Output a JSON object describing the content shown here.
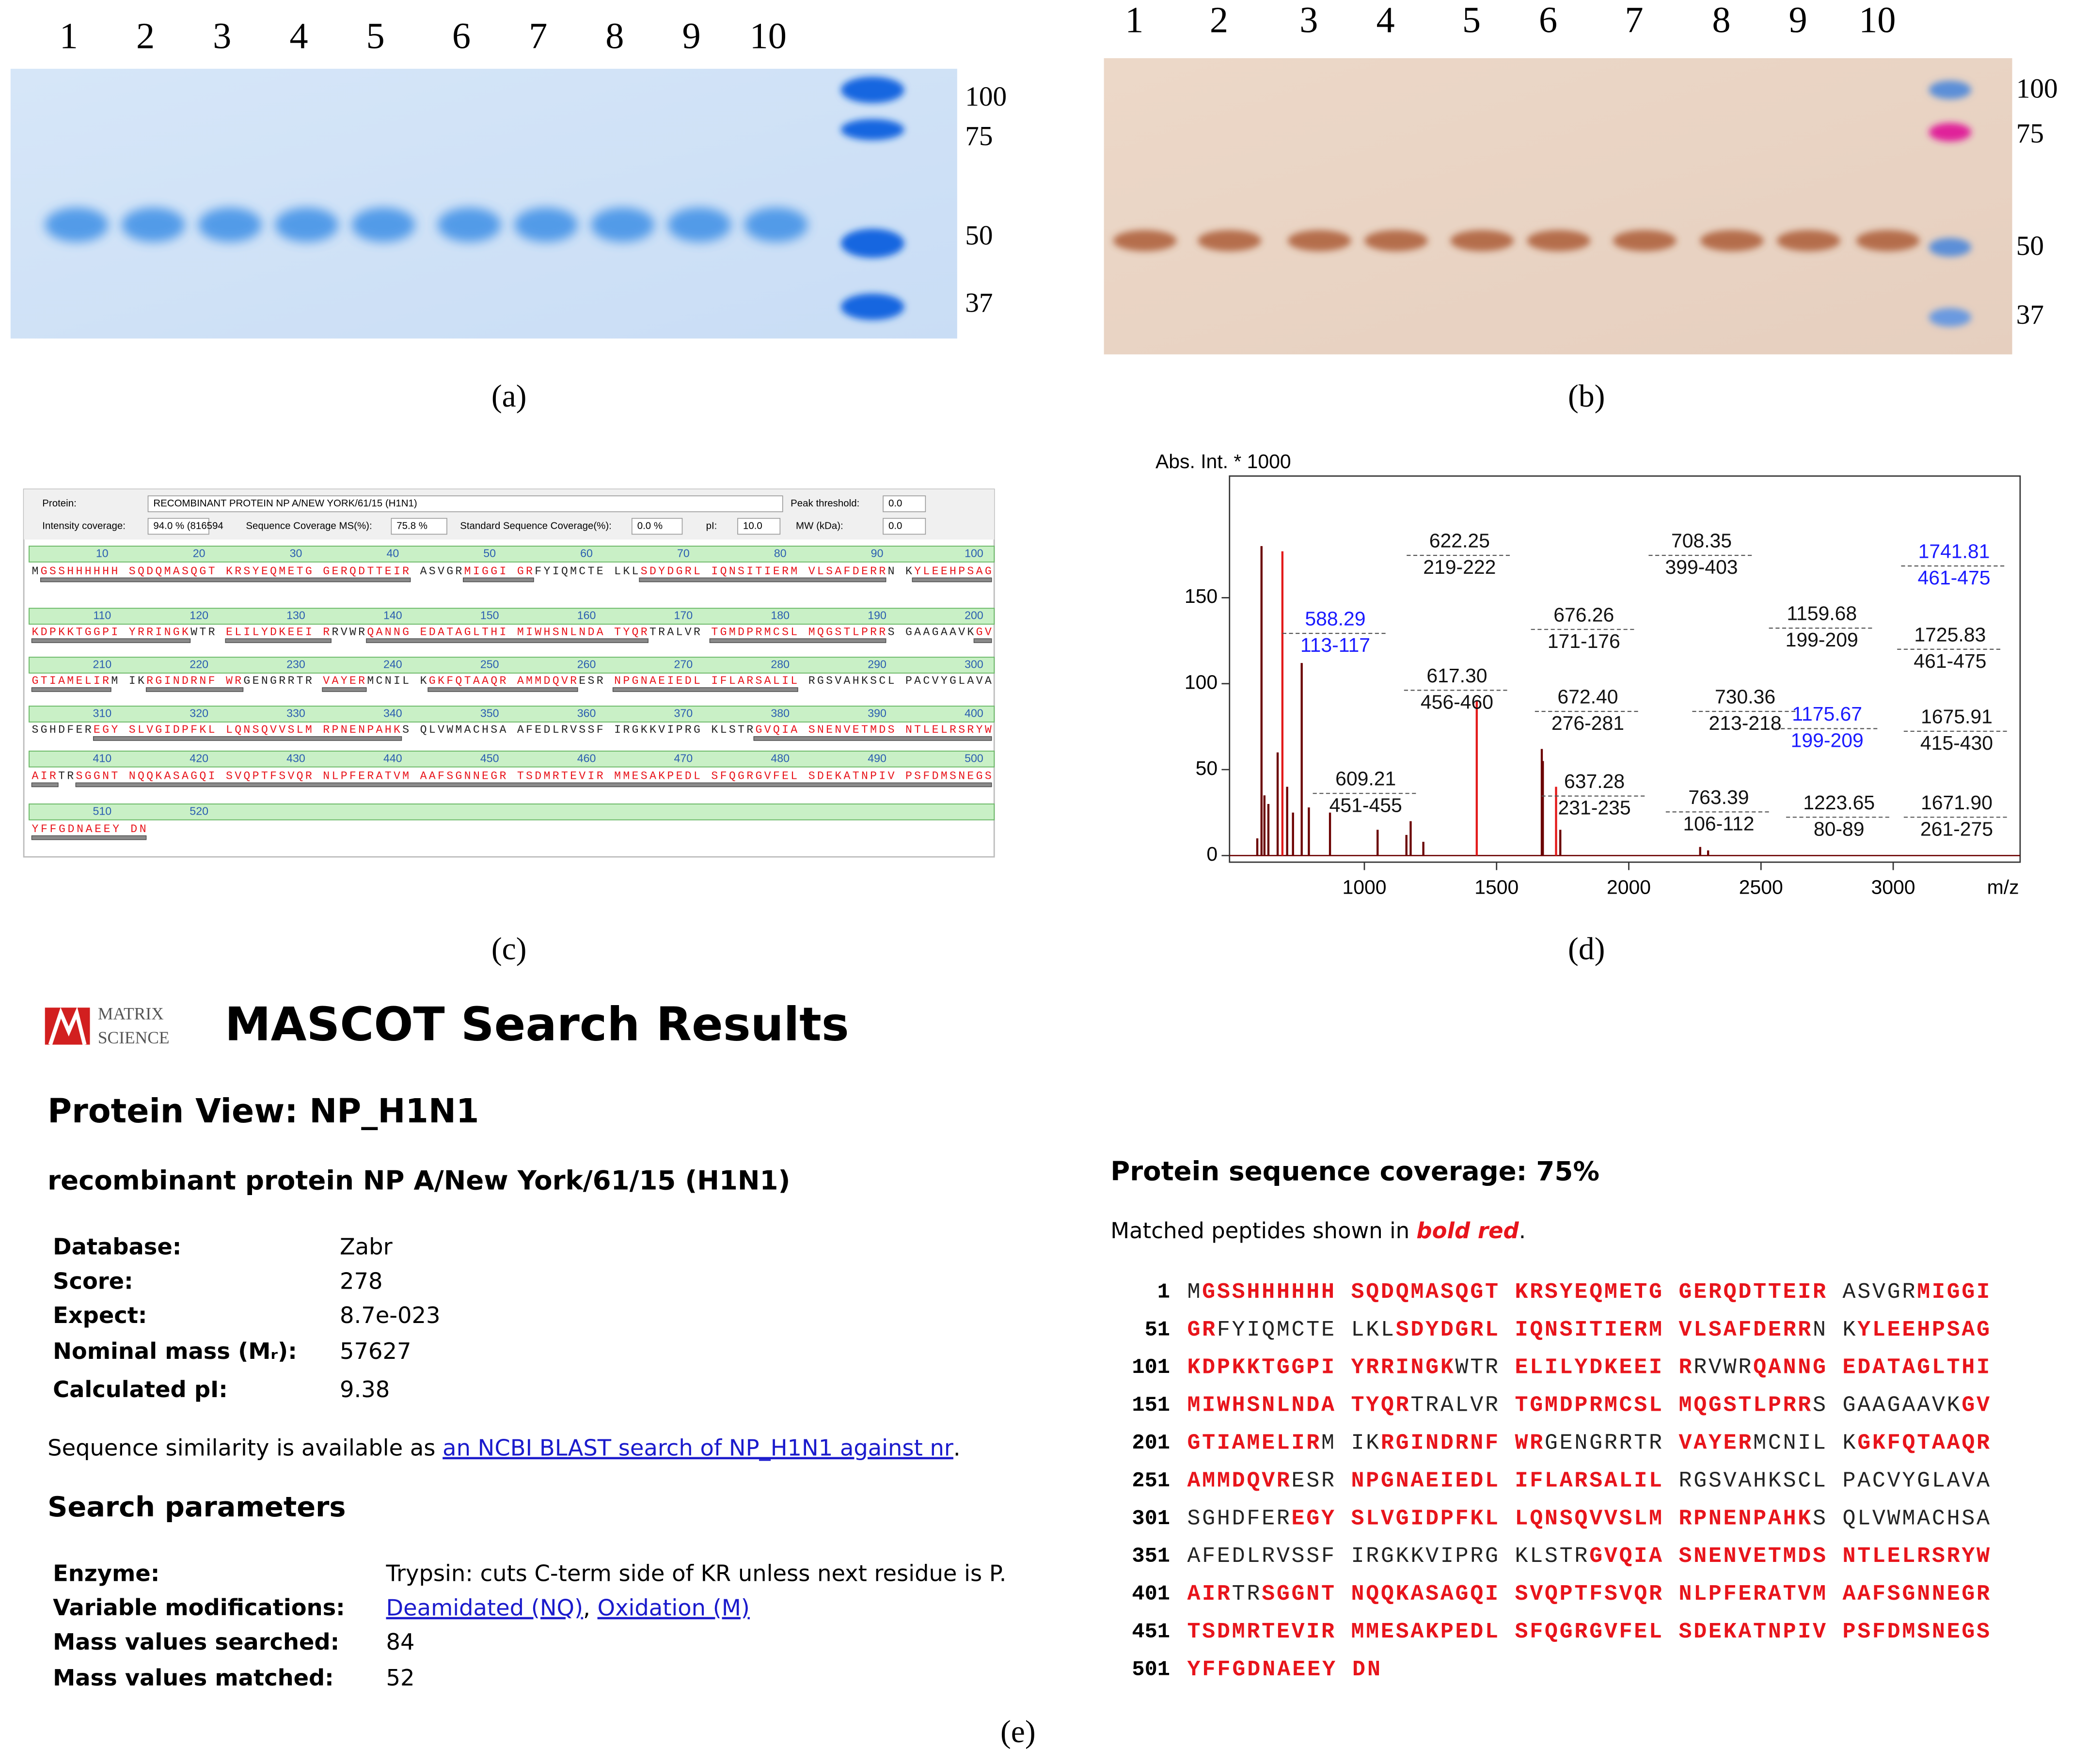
{
  "captions": [
    "(a)",
    "(b)",
    "(c)",
    "(d)",
    "(e)"
  ],
  "gel_a": {
    "lanes": [
      1,
      2,
      3,
      4,
      5,
      6,
      7,
      8,
      9,
      10
    ],
    "markers": [
      100,
      75,
      50,
      37
    ]
  },
  "gel_b": {
    "lanes": [
      1,
      2,
      3,
      4,
      5,
      6,
      7,
      8,
      9,
      10
    ],
    "markers": [
      100,
      75,
      50,
      37
    ]
  },
  "panel_c": {
    "fields": [
      {
        "label": "Protein:",
        "value": "RECOMBINANT PROTEIN NP A/NEW YORK/61/15 (H1N1)"
      },
      {
        "label": "Peak threshold:",
        "value": "0.0"
      },
      {
        "label": "Intensity coverage:",
        "value": "94.0 % (816594"
      },
      {
        "label": "Sequence Coverage MS(%):",
        "value": "75.8 %"
      },
      {
        "label": "Standard Sequence Coverage(%):",
        "value": "0.0 %"
      },
      {
        "label": "pI:",
        "value": "10.0"
      },
      {
        "label": "MW (kDa):",
        "value": "0.0"
      }
    ],
    "ruler": [
      [
        10,
        20,
        30,
        40,
        50,
        60,
        70,
        80,
        90,
        100
      ],
      [
        110,
        120,
        130,
        140,
        150,
        160,
        170,
        180,
        190,
        200
      ],
      [
        210,
        220,
        230,
        240,
        250,
        260,
        270,
        280,
        290,
        300
      ],
      [
        310,
        320,
        330,
        340,
        350,
        360,
        370,
        380,
        390,
        400
      ],
      [
        410,
        420,
        430,
        440,
        450,
        460,
        470,
        480,
        490,
        500
      ],
      [
        510,
        520
      ]
    ],
    "rows": [
      [
        {
          "text": "M",
          "matched": false
        },
        {
          "text": "GSSHHHHHH SQDQMASQGT KRSYEQMETG GERQDTTEIR",
          "matched": true
        },
        {
          "text": " ASVGR",
          "matched": false
        },
        {
          "text": "MIGGI GR",
          "matched": true
        },
        {
          "text": "FYIQMCTE LKL",
          "matched": false
        },
        {
          "text": "SDYDGRL IQNSITIERM VLSAFDERR",
          "matched": true
        },
        {
          "text": "N K",
          "matched": false
        },
        {
          "text": "YLEEHPSAG",
          "matched": true
        }
      ],
      [
        {
          "text": "KDPKKTGGPI YRRINGK",
          "matched": true
        },
        {
          "text": "WTR ",
          "matched": false
        },
        {
          "text": "ELILYDKEEI R",
          "matched": true
        },
        {
          "text": "RVWR",
          "matched": false
        },
        {
          "text": "QANNG EDATAGLTHI MIWHSNLNDA TYQR",
          "matched": true
        },
        {
          "text": "TRALVR ",
          "matched": false
        },
        {
          "text": "TGMDPRMCSL MQGSTLPRR",
          "matched": true
        },
        {
          "text": "S GAAGAAVK",
          "matched": false
        },
        {
          "text": "GV",
          "matched": true
        }
      ],
      [
        {
          "text": "GTIAMELIR",
          "matched": true
        },
        {
          "text": "M IK",
          "matched": false
        },
        {
          "text": "RGINDRNF WR",
          "matched": true
        },
        {
          "text": "GENGRRTR ",
          "matched": false
        },
        {
          "text": "VAYER",
          "matched": true
        },
        {
          "text": "MCNIL K",
          "matched": false
        },
        {
          "text": "GKFQTAAQR AMMDQVR",
          "matched": true
        },
        {
          "text": "ESR ",
          "matched": false
        },
        {
          "text": "NPGNAEIEDL IFLARSALIL",
          "matched": true
        },
        {
          "text": " RGSVAHKSCL PACVYGLAVA",
          "matched": false
        }
      ],
      [
        {
          "text": "SGHDFER",
          "matched": false
        },
        {
          "text": "EGY SLVGIDPFKL LQNSQVVSLM RPNENPAHK",
          "matched": true
        },
        {
          "text": "S QLVWMACHSA AFEDLRVSSF IRGKKVIPRG KLSTR",
          "matched": false
        },
        {
          "text": "GVQIA SNENVETMDS NTLELRSRYW",
          "matched": true
        }
      ],
      [
        {
          "text": "AIR",
          "matched": true
        },
        {
          "text": "TR",
          "matched": false
        },
        {
          "text": "SGGNT NQQKASAGQI SVQPTFSVQR NLPFERATVM AAFSGNNEGR TSDMRTEVIR MMESAKPEDL SFQGRGVFEL SDEKATNPIV PSFDMSNEGS",
          "matched": true
        }
      ],
      [
        {
          "text": "YFFGDNAEEY DN",
          "matched": true
        }
      ]
    ]
  },
  "chart_data": {
    "type": "stem",
    "y_label": "Abs. Int. * 1000",
    "x_label": "m/z",
    "xlim": [
      500,
      3500
    ],
    "ylim": [
      0,
      220
    ],
    "xticks": [
      1000,
      1500,
      2000,
      2500,
      3000
    ],
    "yticks": [
      0,
      50,
      100,
      150
    ],
    "x": [
      595,
      611,
      622,
      637,
      672,
      690,
      708,
      730,
      763,
      790,
      870,
      1050,
      1159,
      1175,
      1223,
      1425,
      1671,
      1675,
      1725,
      1741,
      2270,
      2300
    ],
    "values": [
      10,
      180,
      35,
      30,
      60,
      177,
      40,
      25,
      112,
      28,
      25,
      15,
      12,
      20,
      8,
      90,
      62,
      55,
      40,
      15,
      5,
      3
    ],
    "colors": [
      "#6b0000",
      "#6b0000",
      "#6b0000",
      "#6b0000",
      "#6b0000",
      "#e31a1a",
      "#6b0000",
      "#6b0000",
      "#6b0000",
      "#6b0000",
      "#6b0000",
      "#6b0000",
      "#6b0000",
      "#6b0000",
      "#6b0000",
      "#e31a1a",
      "#6b0000",
      "#6b0000",
      "#e31a1a",
      "#6b0000",
      "#6b0000",
      "#6b0000"
    ],
    "annotations": [
      {
        "mass": "622.25",
        "range": "219-222",
        "color": "#111111"
      },
      {
        "mass": "708.35",
        "range": "399-403",
        "color": "#111111"
      },
      {
        "mass": "1741.81",
        "range": "461-475",
        "color": "#1a1aff"
      },
      {
        "mass": "588.29",
        "range": "113-117",
        "color": "#1a1aff"
      },
      {
        "mass": "676.26",
        "range": "171-176",
        "color": "#111111"
      },
      {
        "mass": "1159.68",
        "range": "199-209",
        "color": "#111111"
      },
      {
        "mass": "1725.83",
        "range": "461-475",
        "color": "#111111"
      },
      {
        "mass": "617.30",
        "range": "456-460",
        "color": "#111111"
      },
      {
        "mass": "672.40",
        "range": "276-281",
        "color": "#111111"
      },
      {
        "mass": "730.36",
        "range": "213-218",
        "color": "#111111"
      },
      {
        "mass": "1175.67",
        "range": "199-209",
        "color": "#1a1aff"
      },
      {
        "mass": "1675.91",
        "range": "415-430",
        "color": "#111111"
      },
      {
        "mass": "609.21",
        "range": "451-455",
        "color": "#111111"
      },
      {
        "mass": "637.28",
        "range": "231-235",
        "color": "#111111"
      },
      {
        "mass": "763.39",
        "range": "106-112",
        "color": "#111111"
      },
      {
        "mass": "1223.65",
        "range": "80-89",
        "color": "#111111"
      },
      {
        "mass": "1671.90",
        "range": "261-275",
        "color": "#111111"
      }
    ]
  },
  "mascot": {
    "logo": [
      "MATRIX",
      "SCIENCE"
    ],
    "title": "MASCOT Search Results",
    "protein_view": "Protein View: NP_H1N1",
    "description": "recombinant protein NP A/New York/61/15 (H1N1)",
    "fields": [
      {
        "label": "Database:",
        "value": "Zabr"
      },
      {
        "label": "Score:",
        "value": 278
      },
      {
        "label": "Expect:",
        "value": "8.7e-023"
      },
      {
        "label": "Nominal mass (Mᵣ):",
        "value": 57627
      },
      {
        "label": "Calculated pI:",
        "value": 9.38
      }
    ],
    "similarity": {
      "text": "Sequence similarity is available as ",
      "link": "an NCBI BLAST search of NP_H1N1 against nr",
      "end": "."
    },
    "search_parameters": "Search parameters",
    "params": [
      {
        "label": "Enzyme:",
        "value": "Trypsin: cuts C-term side of KR unless next residue is P."
      },
      {
        "label": "Variable modifications:",
        "links": [
          "Deamidated (NQ)",
          "Oxidation (M)"
        ],
        "separator": ", "
      },
      {
        "label": "Mass values searched:",
        "value": 84
      },
      {
        "label": "Mass values matched:",
        "value": 52
      }
    ],
    "coverage": "Protein sequence coverage: 75%",
    "note": {
      "text": "Matched peptides shown in ",
      "emph": "bold red",
      "end": "."
    },
    "lines": [
      {
        "start": 1,
        "segments": [
          {
            "text": "M",
            "matched": false
          },
          {
            "text": "GSSHHHHHH SQDQMASQGT KRSYEQMETG GERQDTTEIR",
            "matched": true
          },
          {
            "text": " ASVGR",
            "matched": false
          },
          {
            "text": "MIGGI",
            "matched": true
          }
        ]
      },
      {
        "start": 51,
        "segments": [
          {
            "text": "GR",
            "matched": true
          },
          {
            "text": "FYIQMCTE LKL",
            "matched": false
          },
          {
            "text": "SDYDGRL IQNSITIERM VLSAFDERR",
            "matched": true
          },
          {
            "text": "N K",
            "matched": false
          },
          {
            "text": "YLEEHPSAG",
            "matched": true
          }
        ]
      },
      {
        "start": 101,
        "segments": [
          {
            "text": "KDPKKTGGPI YRRINGK",
            "matched": true
          },
          {
            "text": "WTR ",
            "matched": false
          },
          {
            "text": "ELILYDKEEI R",
            "matched": true
          },
          {
            "text": "RVWR",
            "matched": false
          },
          {
            "text": "QANNG EDATAGLTHI",
            "matched": true
          }
        ]
      },
      {
        "start": 151,
        "segments": [
          {
            "text": "MIWHSNLNDA TYQR",
            "matched": true
          },
          {
            "text": "TRALVR ",
            "matched": false
          },
          {
            "text": "TGMDPRMCSL MQGSTLPRR",
            "matched": true
          },
          {
            "text": "S GAAGAAVK",
            "matched": false
          },
          {
            "text": "GV",
            "matched": true
          }
        ]
      },
      {
        "start": 201,
        "segments": [
          {
            "text": "GTIAMELIR",
            "matched": true
          },
          {
            "text": "M IK",
            "matched": false
          },
          {
            "text": "RGINDRNF WR",
            "matched": true
          },
          {
            "text": "GENGRRTR ",
            "matched": false
          },
          {
            "text": "VAYER",
            "matched": true
          },
          {
            "text": "MCNIL K",
            "matched": false
          },
          {
            "text": "GKFQTAAQR",
            "matched": true
          }
        ]
      },
      {
        "start": 251,
        "segments": [
          {
            "text": "AMMDQVR",
            "matched": true
          },
          {
            "text": "ESR ",
            "matched": false
          },
          {
            "text": "NPGNAEIEDL IFLARSALIL",
            "matched": true
          },
          {
            "text": " RGSVAHKSCL PACVYGLAVA",
            "matched": false
          }
        ]
      },
      {
        "start": 301,
        "segments": [
          {
            "text": "SGHDFER",
            "matched": false
          },
          {
            "text": "EGY SLVGIDPFKL LQNSQVVSLM RPNENPAHK",
            "matched": true
          },
          {
            "text": "S QLVWMACHSA",
            "matched": false
          }
        ]
      },
      {
        "start": 351,
        "segments": [
          {
            "text": "AFEDLRVSSF IRGKKVIPRG KLSTR",
            "matched": false
          },
          {
            "text": "GVQIA SNENVETMDS NTLELRSRYW",
            "matched": true
          }
        ]
      },
      {
        "start": 401,
        "segments": [
          {
            "text": "AIR",
            "matched": true
          },
          {
            "text": "TR",
            "matched": false
          },
          {
            "text": "SGGNT NQQKASAGQI SVQPTFSVQR NLPFERATVM AAFSGNNEGR",
            "matched": true
          }
        ]
      },
      {
        "start": 451,
        "segments": [
          {
            "text": "TSDMRTEVIR MMESAKPEDL SFQGRGVFEL SDEKATNPIV PSFDMSNEGS",
            "matched": true
          }
        ]
      },
      {
        "start": 501,
        "segments": [
          {
            "text": "YFFGDNAEEY DN",
            "matched": true
          }
        ]
      }
    ]
  }
}
